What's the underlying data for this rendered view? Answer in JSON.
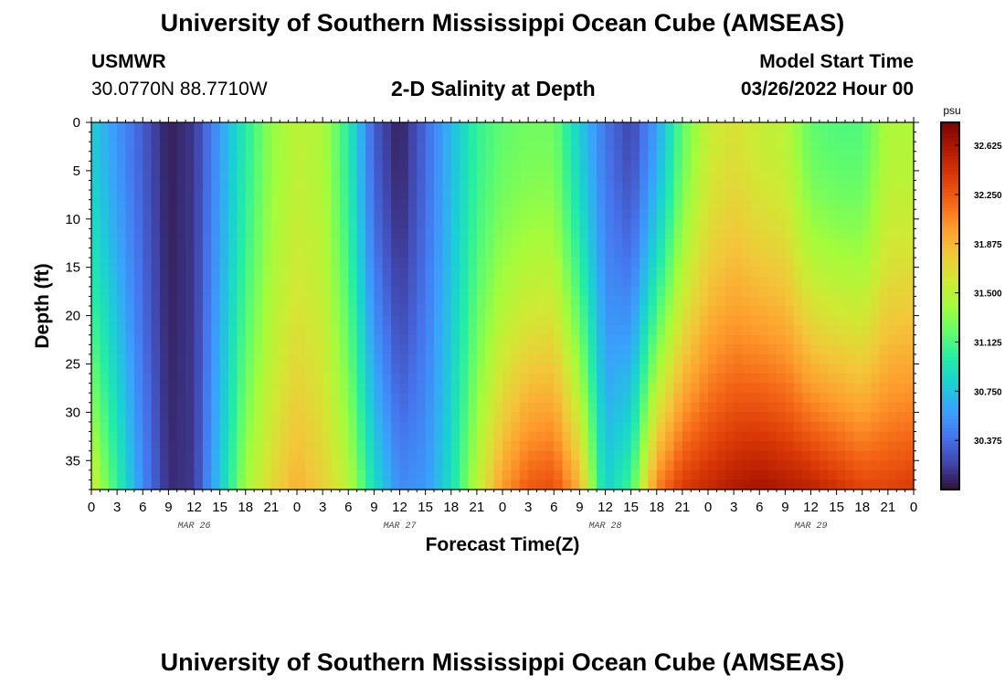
{
  "page": {
    "title_top": "University of Southern Mississippi Ocean Cube (AMSEAS)",
    "title_bottom": "University of Southern Mississippi Ocean Cube (AMSEAS)",
    "station_name": "USMWR",
    "station_location": "30.0770N  88.7710W",
    "chart_subtitle": "2-D Salinity at Depth",
    "model_start_label": "Model Start Time",
    "model_start_value": "03/26/2022 Hour 00"
  },
  "chart_data": {
    "type": "heatmap",
    "title": "2-D Salinity at Depth",
    "xlabel": "Forecast Time(Z)",
    "ylabel": "Depth (ft)",
    "colorbar_unit": "psu",
    "x_range_hours": [
      0,
      96
    ],
    "y_range_ft": [
      0,
      38
    ],
    "x_tick_hours": [
      0,
      3,
      6,
      9,
      12,
      15,
      18,
      21,
      24,
      27,
      30,
      33,
      36,
      39,
      42,
      45,
      48,
      51,
      54,
      57,
      60,
      63,
      66,
      69,
      72,
      75,
      78,
      81,
      84,
      87,
      90,
      93,
      96
    ],
    "x_tick_labels": [
      "0",
      "3",
      "6",
      "9",
      "12",
      "15",
      "18",
      "21",
      "0",
      "3",
      "6",
      "9",
      "12",
      "15",
      "18",
      "21",
      "0",
      "3",
      "6",
      "9",
      "12",
      "15",
      "18",
      "21",
      "0",
      "3",
      "6",
      "9",
      "12",
      "15",
      "18",
      "21",
      "0"
    ],
    "day_labels": [
      {
        "hour": 12,
        "label": "MAR 26"
      },
      {
        "hour": 36,
        "label": "MAR 27"
      },
      {
        "hour": 60,
        "label": "MAR 28"
      },
      {
        "hour": 84,
        "label": "MAR 29"
      }
    ],
    "y_ticks": [
      0,
      5,
      10,
      15,
      20,
      25,
      30,
      35
    ],
    "y_tick_labels": [
      "0",
      "5",
      "10",
      "15",
      "20",
      "25",
      "30",
      "35"
    ],
    "colorbar_ticks": [
      30.375,
      30.75,
      31.125,
      31.5,
      31.875,
      32.25,
      32.625
    ],
    "colorbar_tick_labels": [
      "30.375",
      "30.750",
      "31.125",
      "31.500",
      "31.875",
      "32.250",
      "32.625"
    ],
    "color_range": [
      30.0,
      32.8
    ],
    "colormap": [
      "#30123b",
      "#4145ab",
      "#4675ed",
      "#39a2fc",
      "#1bcfd4",
      "#24eca6",
      "#61fc6c",
      "#a4fc3b",
      "#d1e834",
      "#f3c63a",
      "#fe9b2d",
      "#f36315",
      "#d93806",
      "#b11901",
      "#7a0403"
    ],
    "depth_levels_ft": [
      0,
      38
    ],
    "grid_hours": [
      0,
      6,
      9,
      12,
      18,
      21,
      24,
      27,
      30,
      33,
      36,
      39,
      42,
      45,
      48,
      51,
      54,
      57,
      60,
      63,
      66,
      69,
      72,
      75,
      78,
      81,
      84,
      87,
      90,
      93,
      96
    ],
    "grid_surface_psu": [
      30.8,
      30.3,
      30.05,
      30.15,
      31.0,
      31.35,
      31.5,
      31.45,
      31.0,
      30.3,
      30.05,
      30.35,
      30.7,
      31.05,
      31.2,
      31.25,
      31.25,
      30.8,
      30.4,
      30.2,
      30.6,
      31.2,
      31.55,
      31.65,
      31.55,
      31.5,
      31.2,
      31.15,
      31.15,
      31.45,
      31.45
    ],
    "grid_bottom_psu": [
      31.6,
      30.5,
      30.1,
      30.15,
      31.4,
      31.7,
      31.9,
      31.75,
      31.5,
      30.9,
      30.5,
      30.55,
      30.9,
      31.5,
      32.0,
      32.25,
      32.3,
      31.9,
      30.8,
      31.1,
      32.1,
      32.4,
      32.5,
      32.6,
      32.65,
      32.6,
      32.55,
      32.45,
      32.35,
      32.35,
      32.4
    ]
  }
}
